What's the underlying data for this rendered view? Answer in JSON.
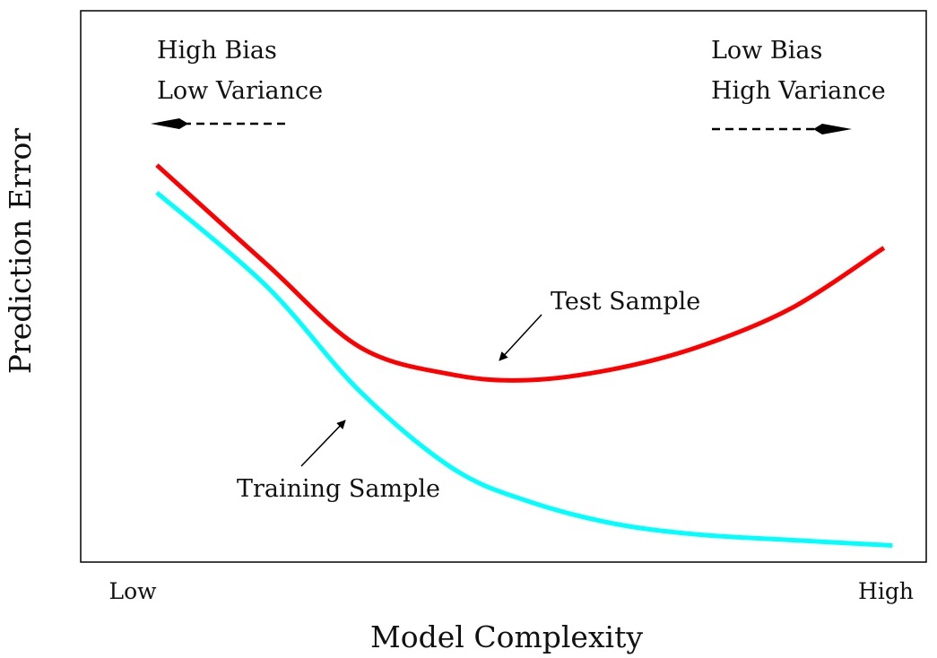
{
  "chart_data": {
    "type": "line",
    "title": "",
    "xlabel": "Model Complexity",
    "ylabel": "Prediction Error",
    "x_tick_labels": [
      "Low",
      "High"
    ],
    "xlim": [
      0,
      1
    ],
    "ylim": [
      0,
      1
    ],
    "grid": false,
    "legend": "none",
    "annotations": {
      "left_line1": "High Bias",
      "left_line2": "Low Variance",
      "right_line1": "Low Bias",
      "right_line2": "High Variance",
      "test_label": "Test Sample",
      "training_label": "Training Sample"
    },
    "series": [
      {
        "color": "#ff0000",
        "x": [
          0.09,
          0.22,
          0.33,
          0.44,
          0.53,
          0.63,
          0.73,
          0.84,
          0.95
        ],
        "y": [
          0.72,
          0.54,
          0.39,
          0.34,
          0.33,
          0.35,
          0.39,
          0.46,
          0.57
        ]
      },
      {
        "color": "#00ffff",
        "x": [
          0.09,
          0.22,
          0.33,
          0.44,
          0.53,
          0.63,
          0.73,
          0.84,
          0.96
        ],
        "y": [
          0.67,
          0.5,
          0.31,
          0.17,
          0.11,
          0.07,
          0.05,
          0.04,
          0.03
        ]
      }
    ]
  }
}
